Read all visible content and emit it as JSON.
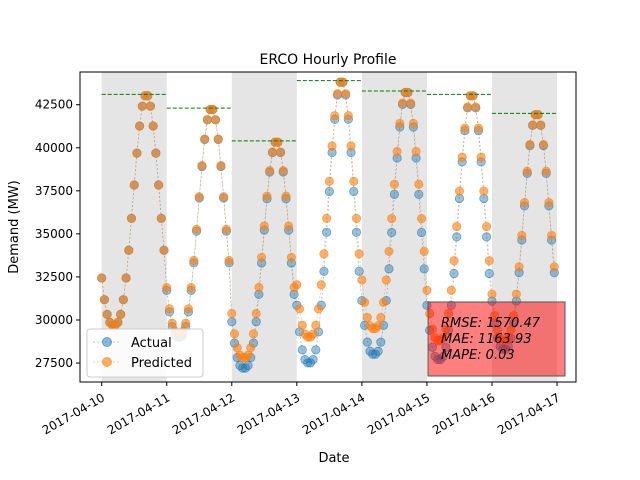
{
  "chart_data": {
    "type": "line",
    "title": "ERCO Hourly Profile",
    "xlabel": "Date",
    "ylabel": "Demand (MW)",
    "xlim": [
      "2017-04-09 16:00",
      "2017-04-17 07:00"
    ],
    "ylim": [
      26400,
      44400
    ],
    "x_ticks": [
      "2017-04-10",
      "2017-04-11",
      "2017-04-12",
      "2017-04-13",
      "2017-04-14",
      "2017-04-15",
      "2017-04-16",
      "2017-04-17"
    ],
    "y_ticks": [
      27500,
      30000,
      32500,
      35000,
      37500,
      40000,
      42500
    ],
    "y_tick_labels": [
      "27500",
      "30000",
      "32500",
      "35000",
      "37500",
      "40000",
      "42500"
    ],
    "weekend_shading_days": [
      "2017-04-10",
      "2017-04-12",
      "2017-04-14",
      "2017-04-16"
    ],
    "daily_peaks": [
      {
        "day": "2017-04-10",
        "value": 43100
      },
      {
        "day": "2017-04-11",
        "value": 42300
      },
      {
        "day": "2017-04-12",
        "value": 40400
      },
      {
        "day": "2017-04-13",
        "value": 43900
      },
      {
        "day": "2017-04-14",
        "value": 43300
      },
      {
        "day": "2017-04-15",
        "value": 43100
      },
      {
        "day": "2017-04-16",
        "value": 42000
      }
    ],
    "daily_profiles": [
      {
        "day": "2017-04-10",
        "actual_peak": 43100,
        "actual_min": 29700,
        "pred_peak": 43100,
        "pred_min": 29700
      },
      {
        "day": "2017-04-11",
        "actual_peak": 42300,
        "actual_min": 29000,
        "pred_peak": 42300,
        "pred_min": 29200
      },
      {
        "day": "2017-04-12",
        "actual_peak": 40400,
        "actual_min": 27200,
        "pred_peak": 40400,
        "pred_min": 27800
      },
      {
        "day": "2017-04-13",
        "actual_peak": 43900,
        "actual_min": 27500,
        "pred_peak": 43900,
        "pred_min": 29000
      },
      {
        "day": "2017-04-14",
        "actual_peak": 43300,
        "actual_min": 28000,
        "pred_peak": 43300,
        "pred_min": 29500
      },
      {
        "day": "2017-04-15",
        "actual_peak": 43100,
        "actual_min": 27700,
        "pred_peak": 43100,
        "pred_min": 28800
      },
      {
        "day": "2017-04-16",
        "actual_peak": 42000,
        "actual_min": 28300,
        "pred_peak": 42000,
        "pred_min": 28800
      }
    ],
    "series": [
      {
        "name": "Actual",
        "color": "#1f77b4"
      },
      {
        "name": "Predicted",
        "color": "#ff7f0e"
      }
    ],
    "peak_line_color": "#008000",
    "shading_color": "#e5e5e5",
    "legend": "lower-left",
    "metrics": {
      "rmse": "RMSE: 1570.47",
      "mae": "MAE: 1163.93",
      "mape": "MAPE: 0.03",
      "box_color": "#ff0000"
    }
  }
}
